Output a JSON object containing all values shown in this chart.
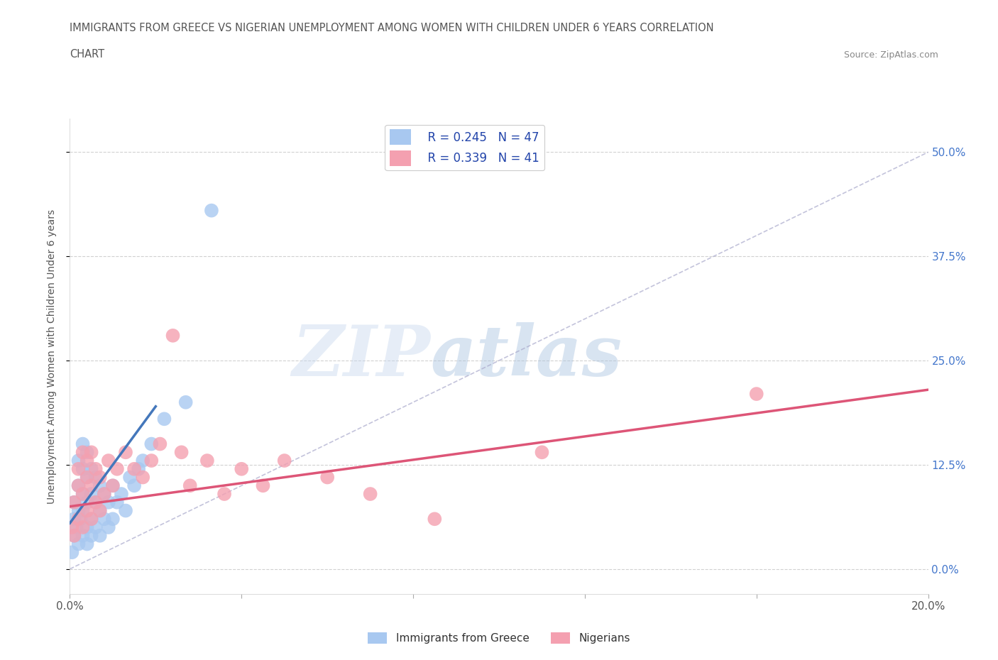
{
  "title_line1": "IMMIGRANTS FROM GREECE VS NIGERIAN UNEMPLOYMENT AMONG WOMEN WITH CHILDREN UNDER 6 YEARS CORRELATION",
  "title_line2": "CHART",
  "source": "Source: ZipAtlas.com",
  "ylabel": "Unemployment Among Women with Children Under 6 years",
  "xlim": [
    0.0,
    0.2
  ],
  "ylim": [
    -0.03,
    0.54
  ],
  "yticks": [
    0.0,
    0.125,
    0.25,
    0.375,
    0.5
  ],
  "ytick_labels_right": [
    "0.0%",
    "12.5%",
    "25.0%",
    "37.5%",
    "50.0%"
  ],
  "xticks": [
    0.0,
    0.04,
    0.08,
    0.12,
    0.16,
    0.2
  ],
  "xtick_labels": [
    "0.0%",
    "",
    "",
    "",
    "",
    "20.0%"
  ],
  "color_greece": "#a8c8f0",
  "color_nigeria": "#f4a0b0",
  "color_greece_line": "#4477bb",
  "color_nigeria_line": "#dd5577",
  "R_greece": 0.245,
  "N_greece": 47,
  "R_nigeria": 0.339,
  "N_nigeria": 41,
  "greece_scatter_x": [
    0.0005,
    0.001,
    0.001,
    0.001,
    0.0015,
    0.002,
    0.002,
    0.002,
    0.002,
    0.0025,
    0.003,
    0.003,
    0.003,
    0.003,
    0.003,
    0.004,
    0.004,
    0.004,
    0.004,
    0.004,
    0.005,
    0.005,
    0.005,
    0.005,
    0.006,
    0.006,
    0.006,
    0.007,
    0.007,
    0.007,
    0.008,
    0.008,
    0.009,
    0.009,
    0.01,
    0.01,
    0.011,
    0.012,
    0.013,
    0.014,
    0.015,
    0.016,
    0.017,
    0.019,
    0.022,
    0.027,
    0.033
  ],
  "greece_scatter_y": [
    0.02,
    0.04,
    0.06,
    0.08,
    0.05,
    0.03,
    0.07,
    0.1,
    0.13,
    0.06,
    0.04,
    0.07,
    0.09,
    0.12,
    0.15,
    0.03,
    0.05,
    0.08,
    0.11,
    0.14,
    0.04,
    0.06,
    0.09,
    0.12,
    0.05,
    0.08,
    0.11,
    0.04,
    0.07,
    0.1,
    0.06,
    0.09,
    0.05,
    0.08,
    0.06,
    0.1,
    0.08,
    0.09,
    0.07,
    0.11,
    0.1,
    0.12,
    0.13,
    0.15,
    0.18,
    0.2,
    0.43
  ],
  "nigeria_scatter_x": [
    0.0005,
    0.001,
    0.001,
    0.002,
    0.002,
    0.002,
    0.003,
    0.003,
    0.003,
    0.004,
    0.004,
    0.004,
    0.005,
    0.005,
    0.005,
    0.006,
    0.006,
    0.007,
    0.007,
    0.008,
    0.009,
    0.01,
    0.011,
    0.013,
    0.015,
    0.017,
    0.019,
    0.021,
    0.024,
    0.026,
    0.028,
    0.032,
    0.036,
    0.04,
    0.045,
    0.05,
    0.06,
    0.07,
    0.085,
    0.11,
    0.16
  ],
  "nigeria_scatter_y": [
    0.05,
    0.04,
    0.08,
    0.06,
    0.1,
    0.12,
    0.05,
    0.09,
    0.14,
    0.07,
    0.11,
    0.13,
    0.06,
    0.1,
    0.14,
    0.08,
    0.12,
    0.07,
    0.11,
    0.09,
    0.13,
    0.1,
    0.12,
    0.14,
    0.12,
    0.11,
    0.13,
    0.15,
    0.28,
    0.14,
    0.1,
    0.13,
    0.09,
    0.12,
    0.1,
    0.13,
    0.11,
    0.09,
    0.06,
    0.14,
    0.21
  ],
  "greece_line_x": [
    0.0,
    0.02
  ],
  "greece_line_y": [
    0.055,
    0.195
  ],
  "nigeria_line_x": [
    0.0,
    0.2
  ],
  "nigeria_line_y": [
    0.075,
    0.215
  ],
  "diag_line_x": [
    0.0,
    0.2
  ],
  "diag_line_y": [
    0.0,
    0.5
  ],
  "watermark_zip": "ZIP",
  "watermark_atlas": "atlas",
  "background_color": "#ffffff",
  "grid_color": "#cccccc"
}
